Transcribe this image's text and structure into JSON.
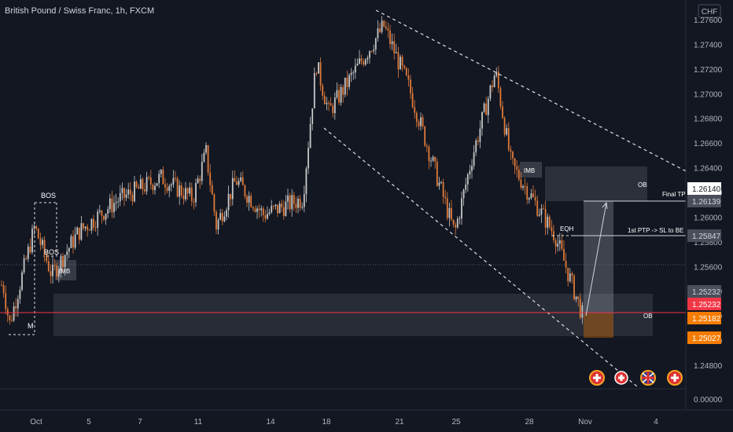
{
  "header": {
    "title": "British Pound / Swiss Franc, 1h, FXCM",
    "currency": "CHF"
  },
  "price_axis": {
    "ticks": [
      "1.27600",
      "1.27400",
      "1.27200",
      "1.27000",
      "1.26800",
      "1.26600",
      "1.26400",
      "1.26200",
      "1.26000",
      "1.25800",
      "1.25600",
      "1.25400",
      "1.25200",
      "1.25000",
      "1.24800"
    ],
    "bottom_value": "0.00000"
  },
  "price_labels": [
    {
      "id": "final-tp-label",
      "text": "1.26140",
      "color": "#ffffff",
      "text_color": "#131722"
    },
    {
      "id": "final-tp-label-2",
      "text": "1.26139",
      "color": "#4a4e5a",
      "text_color": "#d1d4dc"
    },
    {
      "id": "ptp-label",
      "text": "1.25847",
      "color": "#4a4e5a",
      "text_color": "#d1d4dc"
    },
    {
      "id": "ob-top-label",
      "text": "1.25232",
      "color": "#4a4e5a",
      "text_color": "#d1d4dc"
    },
    {
      "id": "current-price-label",
      "text": "1.25232",
      "color": "#f23645",
      "text_color": "#ffffff"
    },
    {
      "id": "entry-label",
      "text": "1.25182",
      "color": "#f57c00",
      "text_color": "#ffffff"
    },
    {
      "id": "sl-label",
      "text": "1.25027",
      "color": "#f57c00",
      "text_color": "#ffffff"
    }
  ],
  "time_axis": {
    "ticks": [
      "Oct",
      "5",
      "7",
      "11",
      "14",
      "18",
      "21",
      "25",
      "28",
      "Nov",
      "4"
    ]
  },
  "annotations": {
    "bos_top": "BOS",
    "bos_mid": "BOS",
    "imb_left": "IMB",
    "m_label": "M",
    "imb_right": "IMB",
    "ob_top": "OB",
    "eqh": "EQH",
    "ob_bottom": "OB",
    "final_tp": "Final TP",
    "first_ptp": "1st PTP -> SL to BE"
  },
  "colors": {
    "background": "#131722",
    "candle_up": "#c8c8c8",
    "candle_down": "#e07b39",
    "current_price_line": "#f23645",
    "zone_fill": "rgba(120,123,134,0.25)",
    "sl_zone_fill": "rgba(245,124,0,0.35)",
    "tp_zone_fill": "rgba(180,182,190,0.30)"
  },
  "event_icons": [
    "swiss-flag",
    "swiss-flag",
    "uk-flag",
    "swiss-flag"
  ],
  "chart_data": {
    "type": "candlestick",
    "title": "British Pound / Swiss Franc, 1h, FXCM",
    "ylim": [
      1.2475,
      1.2765
    ],
    "waypoints": [
      {
        "date": "Sep 30",
        "price": 1.2545
      },
      {
        "date": "Oct 1",
        "price": 1.2513
      },
      {
        "date": "Oct 2",
        "price": 1.2592
      },
      {
        "date": "Oct 3",
        "price": 1.2553
      },
      {
        "date": "Oct 4",
        "price": 1.2588
      },
      {
        "date": "Oct 5",
        "price": 1.2614
      },
      {
        "date": "Oct 8",
        "price": 1.2632
      },
      {
        "date": "Oct 10",
        "price": 1.2615
      },
      {
        "date": "Oct 11",
        "price": 1.2652
      },
      {
        "date": "Oct 12",
        "price": 1.2593
      },
      {
        "date": "Oct 13",
        "price": 1.263
      },
      {
        "date": "Oct 14",
        "price": 1.2602
      },
      {
        "date": "Oct 17",
        "price": 1.2615
      },
      {
        "date": "Oct 18",
        "price": 1.2725
      },
      {
        "date": "Oct 19",
        "price": 1.2685
      },
      {
        "date": "Oct 20",
        "price": 1.2755
      },
      {
        "date": "Oct 21",
        "price": 1.2705
      },
      {
        "date": "Oct 24",
        "price": 1.2587
      },
      {
        "date": "Oct 26",
        "price": 1.2648
      },
      {
        "date": "Oct 27",
        "price": 1.2718
      },
      {
        "date": "Oct 28",
        "price": 1.2643
      },
      {
        "date": "Oct 29",
        "price": 1.2585
      },
      {
        "date": "Oct 31",
        "price": 1.2518
      }
    ],
    "levels": [
      {
        "name": "Final TP",
        "value": 1.2614
      },
      {
        "name": "1st PTP -> SL to BE",
        "value": 1.25847
      },
      {
        "name": "OB",
        "value": 1.25232
      },
      {
        "name": "Entry",
        "value": 1.25182
      },
      {
        "name": "SL",
        "value": 1.25027
      }
    ]
  }
}
